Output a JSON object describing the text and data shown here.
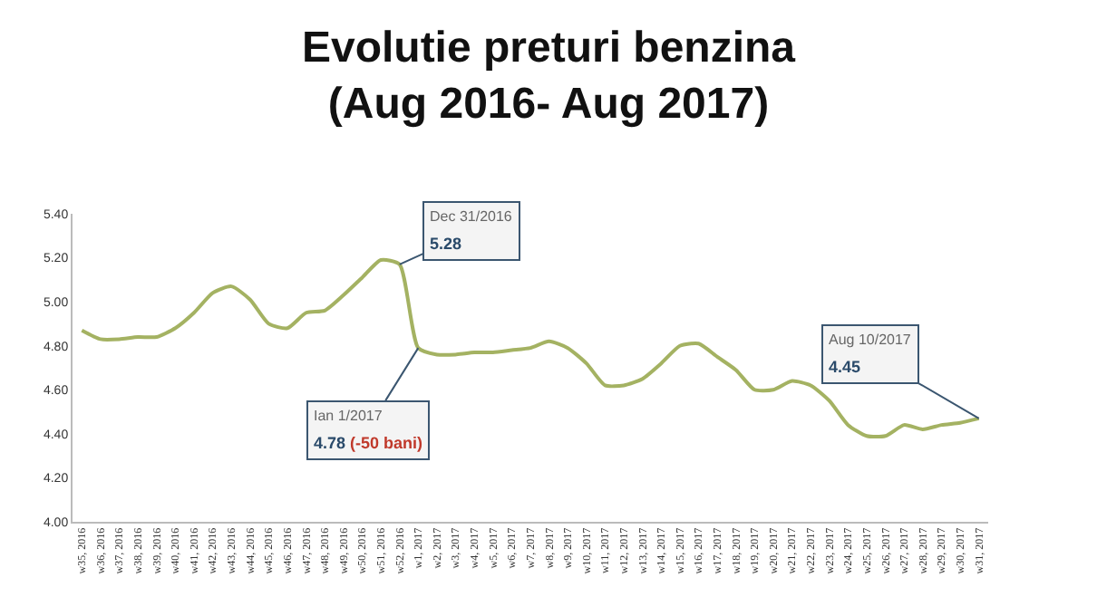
{
  "chart_data": {
    "type": "line",
    "title": "Evolutie preturi benzina\n(Aug 2016- Aug 2017)",
    "categories": [
      "w35, 2016",
      "w36, 2016",
      "w37, 2016",
      "w38, 2016",
      "w39, 2016",
      "w40, 2016",
      "w41, 2016",
      "w42, 2016",
      "w43, 2016",
      "w44, 2016",
      "w45, 2016",
      "w46, 2016",
      "w47, 2016",
      "w48, 2016",
      "w49, 2016",
      "w50, 2016",
      "w51, 2016",
      "w52, 2016",
      "w1, 2017",
      "w2, 2017",
      "w3, 2017",
      "w4, 2017",
      "w5, 2017",
      "w6, 2017",
      "w7, 2017",
      "w8, 2017",
      "w9, 2017",
      "w10, 2017",
      "w11, 2017",
      "w12, 2017",
      "w13, 2017",
      "w14, 2017",
      "w15, 2017",
      "w16, 2017",
      "w17, 2017",
      "w18, 2017",
      "w19, 2017",
      "w20, 2017",
      "w21, 2017",
      "w22, 2017",
      "w23, 2017",
      "w24, 2017",
      "w25, 2017",
      "w26, 2017",
      "w27, 2017",
      "w28, 2017",
      "w29, 2017",
      "w30, 2017",
      "w31, 2017"
    ],
    "series": [
      {
        "color": "#a4b262",
        "values": [
          4.87,
          4.83,
          4.83,
          4.84,
          4.84,
          4.88,
          4.95,
          5.04,
          5.07,
          5.01,
          4.9,
          4.88,
          4.95,
          4.96,
          5.03,
          5.11,
          5.19,
          5.17,
          4.79,
          4.76,
          4.76,
          4.77,
          4.77,
          4.78,
          4.79,
          4.82,
          4.79,
          4.72,
          4.62,
          4.62,
          4.65,
          4.72,
          4.8,
          4.81,
          4.75,
          4.69,
          4.6,
          4.6,
          4.64,
          4.62,
          4.55,
          4.44,
          4.39,
          4.39,
          4.44,
          4.42,
          4.44,
          4.45,
          4.47
        ]
      }
    ],
    "ylim": [
      4.0,
      5.4
    ],
    "yticks": [
      {
        "value": 4.0,
        "label": "4.00"
      },
      {
        "value": 4.2,
        "label": "4.20"
      },
      {
        "value": 4.4,
        "label": "4.40"
      },
      {
        "value": 4.6,
        "label": "4.60"
      },
      {
        "value": 4.8,
        "label": "4.80"
      },
      {
        "value": 5.0,
        "label": "5.00"
      },
      {
        "value": 5.2,
        "label": "5.20"
      },
      {
        "value": 5.4,
        "label": "5.40"
      }
    ],
    "grid": false,
    "marker": "none",
    "line_style": "solid",
    "annotations": [
      {
        "text": "Dec 31/2016\n5.28",
        "x": "w52, 2016",
        "y": 5.17
      },
      {
        "text": "Ian 1/2017\n4.78 (-50 bani)",
        "x": "w1, 2017",
        "y": 4.79
      },
      {
        "text": "Aug 10/2017\n4.45",
        "x": "w31, 2017",
        "y": 4.47
      }
    ]
  }
}
